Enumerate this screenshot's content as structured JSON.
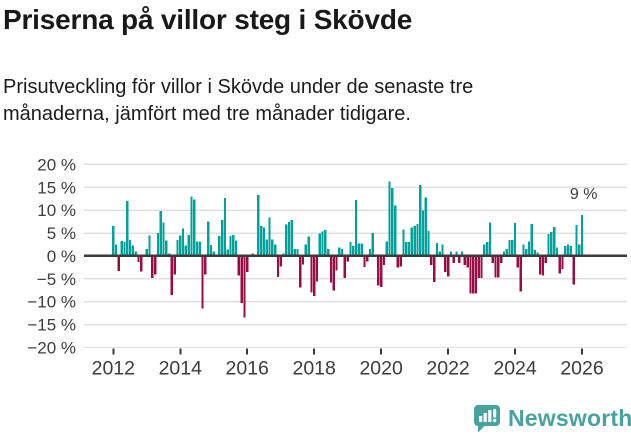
{
  "page": {
    "title": "Priserna på villor steg i Skövde",
    "subtitle": "Prisutveckling för villor i Skövde under de senaste tre\nmånaderna, jämfört med tre månader tidigare."
  },
  "footer": {
    "brand": "Newsworthy",
    "icon": "newsworthy-speech-bubble-chart-icon",
    "brand_color": "#46a3a0"
  },
  "chart_data": {
    "type": "bar",
    "title": "Priserna på villor steg i Skövde",
    "unit": "%",
    "frequency": "monthly",
    "start": "2012-01",
    "end": "2026-01",
    "ylim": [
      -20,
      20
    ],
    "grid": "horizontal",
    "legend": "none",
    "colors": {
      "positive": "#00a29b",
      "negative": "#990c45",
      "gridline": "#e0e0e0",
      "zero_line": "#3b3b3b",
      "axis_text": "#3c3c3c"
    },
    "y_ticks": [
      {
        "value": 20,
        "label": "20 %"
      },
      {
        "value": 15,
        "label": "15 %"
      },
      {
        "value": 10,
        "label": "10 %"
      },
      {
        "value": 5,
        "label": "5 %"
      },
      {
        "value": 0,
        "label": "0 %"
      },
      {
        "value": -5,
        "label": "−5 %"
      },
      {
        "value": -10,
        "label": "−10 %"
      },
      {
        "value": -15,
        "label": "−15 %"
      },
      {
        "value": -20,
        "label": "−20 %"
      }
    ],
    "x_tick_labels": [
      "2012",
      "2014",
      "2016",
      "2018",
      "2020",
      "2022",
      "2024",
      "2026"
    ],
    "annotation": {
      "text": "9 %",
      "month": "2026-01",
      "value": 9
    },
    "values": [
      6.5,
      2.5,
      -3.3,
      3.3,
      3.0,
      12.0,
      3.5,
      2.3,
      1.0,
      -1.3,
      -3.4,
      0.3,
      1.5,
      4.5,
      -4.8,
      -4.0,
      5.0,
      9.8,
      7.3,
      3.4,
      0.5,
      -8.5,
      -4.0,
      3.5,
      4.5,
      6.0,
      2.3,
      4.6,
      13.0,
      12.3,
      3.2,
      3.2,
      -11.5,
      -4.0,
      7.5,
      2.4,
      1.0,
      0.3,
      4.4,
      7.8,
      12.7,
      1.4,
      4.4,
      4.6,
      3.4,
      -4.3,
      -10.3,
      -13.4,
      -3.5,
      0.3,
      0.5,
      0.3,
      13.3,
      6.5,
      6.2,
      3.6,
      8.4,
      3.6,
      2.5,
      -4.6,
      -2.3,
      0.5,
      6.9,
      7.4,
      7.9,
      1.5,
      1.5,
      -6.9,
      -1.9,
      2.5,
      4.2,
      -8.0,
      -8.8,
      -5.6,
      4.9,
      5.3,
      5.7,
      1.5,
      -5.8,
      -7.5,
      -3.2,
      1.9,
      1.5,
      -4.8,
      -1.2,
      3.0,
      2.2,
      12.2,
      2.7,
      2.7,
      -2.4,
      -1.2,
      1.5,
      5.0,
      0.3,
      -6.5,
      -6.8,
      -2.0,
      3.2,
      16.3,
      14.8,
      11.0,
      -2.5,
      -2.3,
      5.8,
      3.0,
      3.1,
      6.2,
      6.5,
      7.0,
      15.5,
      9.9,
      12.8,
      5.5,
      -2.0,
      -5.7,
      2.8,
      1.0,
      2.5,
      -3.5,
      -4.5,
      1.0,
      -1.5,
      1.0,
      -1.5,
      1.0,
      -2.0,
      -2.5,
      -8.2,
      -8.2,
      -8.2,
      -4.8,
      -4.8,
      2.5,
      3.0,
      7.3,
      -1.5,
      -4.7,
      -4.7,
      -1.5,
      1.0,
      1.5,
      3.5,
      3.5,
      7.2,
      -2.5,
      -7.8,
      2.5,
      1.5,
      3.2,
      7.0,
      1.3,
      0.8,
      -4.0,
      -4.3,
      -1.5,
      4.8,
      5.2,
      6.3,
      1.8,
      -3.8,
      -2.8,
      2.2,
      2.5,
      2.2,
      -6.2,
      6.8,
      2.5,
      9.0
    ]
  }
}
